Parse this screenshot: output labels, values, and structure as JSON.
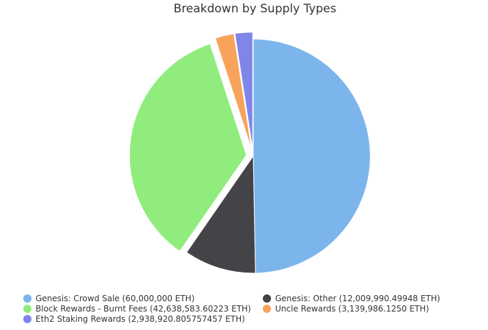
{
  "chart_data": {
    "type": "pie",
    "title": "Breakdown by Supply Types",
    "legend_position": "bottom",
    "slices": [
      {
        "label": "Genesis: Crowd Sale (60,000,000 ETH)",
        "value": 60000000,
        "color": "#7cb5ec",
        "exploded": false
      },
      {
        "label": "Genesis: Other (12,009,990.49948 ETH)",
        "value": 12009990.49948,
        "color": "#434348",
        "exploded": false
      },
      {
        "label": "Block Rewards - Burnt Fees (42,638,583.60223 ETH)",
        "value": 42638583.60223,
        "color": "#90ed7d",
        "exploded": true
      },
      {
        "label": "Uncle Rewards (3,139,986.1250 ETH)",
        "value": 3139986.125,
        "color": "#f7a35c",
        "exploded": true
      },
      {
        "label": "Eth2 Staking Rewards (2,938,920.805757457 ETH)",
        "value": 2938920.805757457,
        "color": "#8085e9",
        "exploded": true
      }
    ]
  }
}
